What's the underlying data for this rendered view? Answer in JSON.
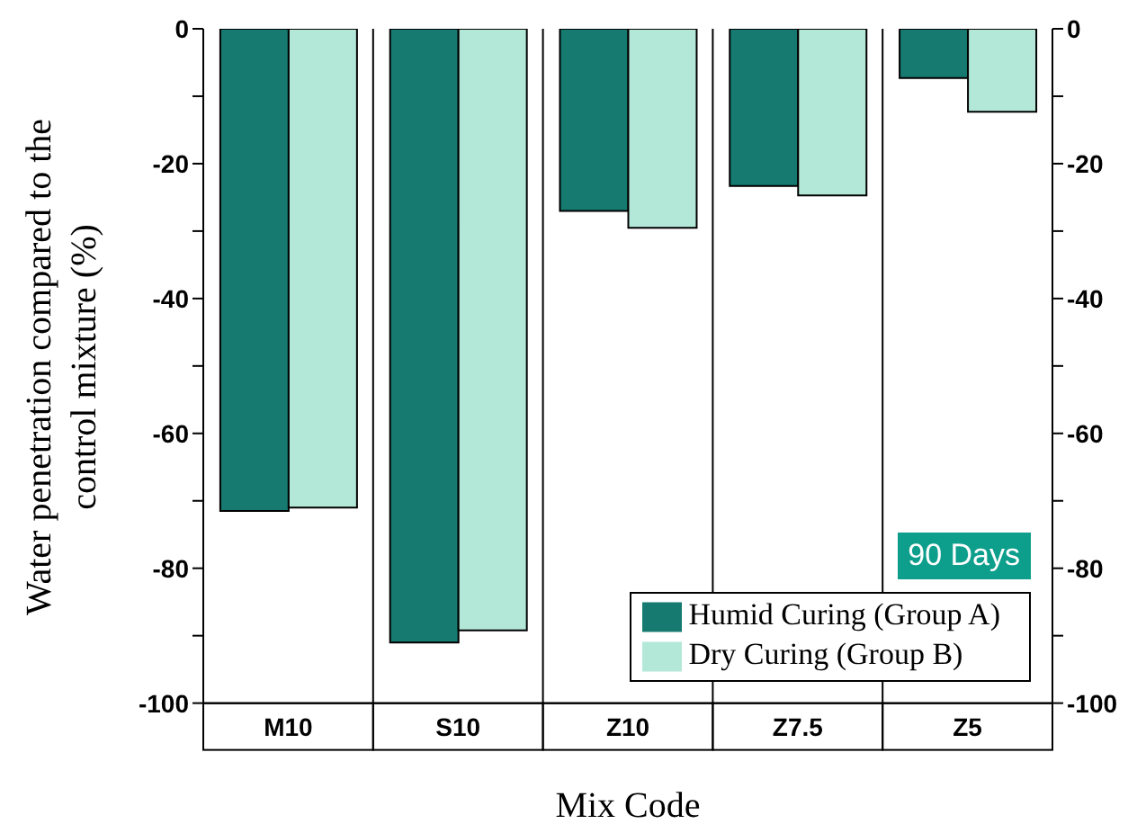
{
  "chart_data": {
    "type": "bar",
    "xlabel": "Mix Code",
    "ylabel": "Water penetration compared to the control mixture (%)",
    "categories": [
      "M10",
      "S10",
      "Z10",
      "Z7.5",
      "Z5"
    ],
    "series": [
      {
        "name": "Humid Curing (Group A)",
        "color": "#167a70",
        "values": [
          -71.5,
          -91,
          -27,
          -23.3,
          -7.3
        ]
      },
      {
        "name": "Dry Curing (Group B)",
        "color": "#b3e8d8",
        "values": [
          -71,
          -89.2,
          -29.5,
          -24.7,
          -12.3
        ]
      }
    ],
    "ylim": [
      -100,
      0
    ],
    "yticks": [
      0,
      {
        "value": -10,
        "label": null
      },
      -20,
      {
        "value": -30,
        "label": null
      },
      -40,
      {
        "value": -50,
        "label": null
      },
      -60,
      {
        "value": -70,
        "label": null
      },
      -80,
      {
        "value": -90,
        "label": null
      },
      -100
    ],
    "y2lim": [
      -100,
      0
    ],
    "y2ticks": [
      0,
      {
        "value": -10,
        "label": null
      },
      -20,
      {
        "value": -30,
        "label": null
      },
      -40,
      {
        "value": -50,
        "label": null
      },
      -60,
      {
        "value": -70,
        "label": null
      },
      -80,
      {
        "value": -90,
        "label": null
      },
      -100
    ],
    "grid": "x",
    "legend": "bottom right",
    "annotations": [
      "90 Days"
    ]
  }
}
